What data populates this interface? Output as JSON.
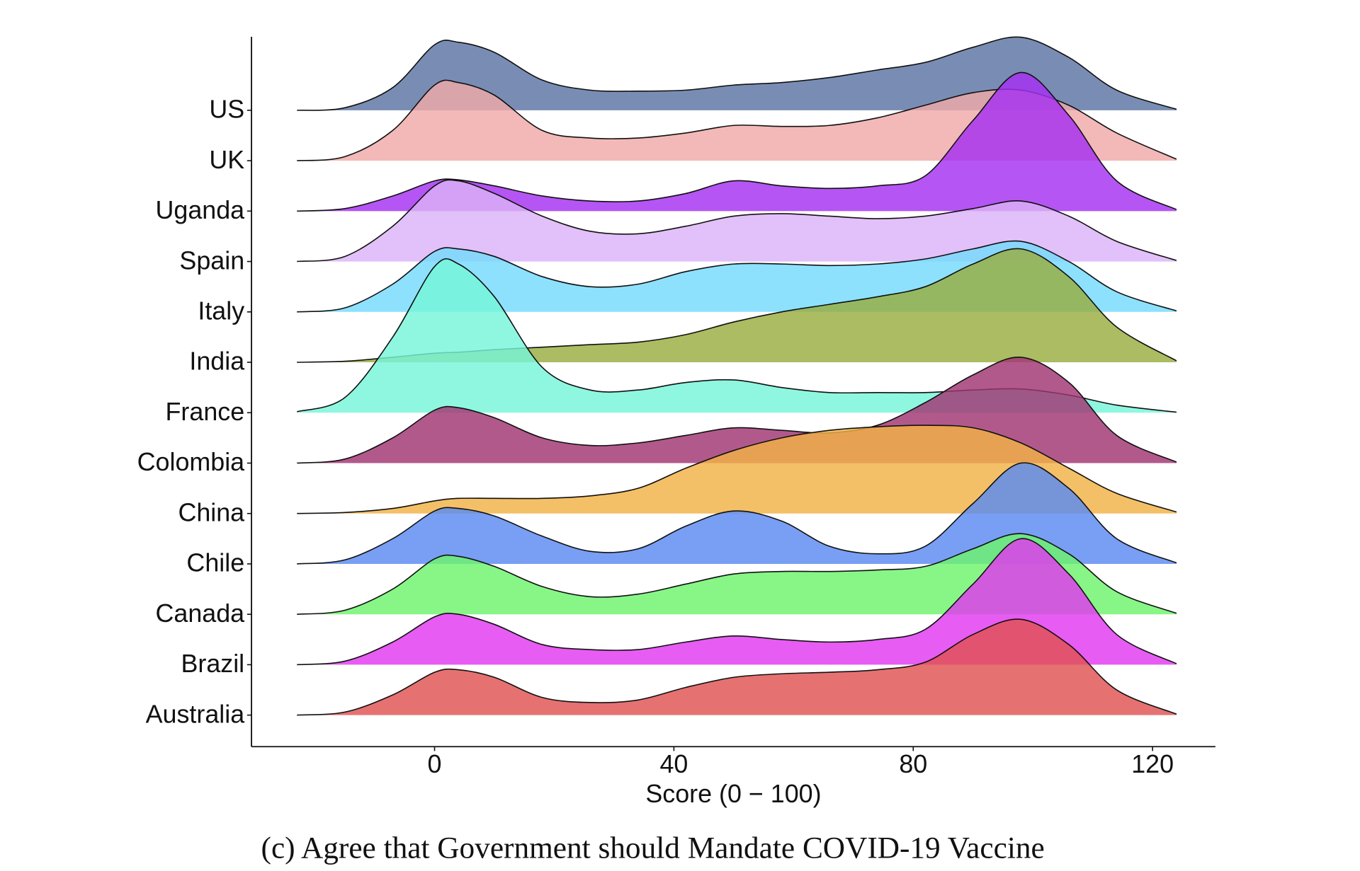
{
  "chart_data": {
    "type": "ridgeline",
    "xlabel": "Score (0 − 100)",
    "caption": "(c) Agree that Government should Mandate COVID-19 Vaccine",
    "xlim": [
      -30.6,
      130.5
    ],
    "xticks": [
      0,
      40,
      80,
      120
    ],
    "x": [
      -23,
      -15,
      -7,
      0,
      4,
      10,
      18,
      26,
      34,
      42,
      50,
      58,
      66,
      74,
      82,
      90,
      98,
      106,
      114,
      124
    ],
    "series": [
      {
        "name": "US",
        "color": "#5b74a4",
        "values": [
          0,
          0.05,
          0.45,
          1.3,
          1.35,
          1.15,
          0.6,
          0.4,
          0.38,
          0.4,
          0.5,
          0.55,
          0.65,
          0.8,
          0.95,
          1.25,
          1.45,
          1.05,
          0.4,
          0.02
        ]
      },
      {
        "name": "UK",
        "color": "#efaaa8",
        "values": [
          0,
          0.08,
          0.6,
          1.5,
          1.55,
          1.3,
          0.6,
          0.45,
          0.45,
          0.55,
          0.7,
          0.68,
          0.7,
          0.85,
          1.1,
          1.35,
          1.4,
          1.1,
          0.55,
          0.03
        ]
      },
      {
        "name": "Uganda",
        "color": "#a530f2",
        "values": [
          0,
          0.05,
          0.3,
          0.6,
          0.62,
          0.5,
          0.3,
          0.2,
          0.2,
          0.35,
          0.6,
          0.5,
          0.45,
          0.5,
          0.7,
          1.8,
          2.75,
          1.9,
          0.6,
          0.03
        ]
      },
      {
        "name": "Spain",
        "color": "#dcb2f8",
        "values": [
          0,
          0.1,
          0.7,
          1.5,
          1.6,
          1.35,
          0.9,
          0.6,
          0.55,
          0.7,
          0.9,
          0.95,
          0.9,
          0.85,
          0.9,
          1.05,
          1.2,
          0.9,
          0.4,
          0.02
        ]
      },
      {
        "name": "Italy",
        "color": "#74dbfb",
        "values": [
          0,
          0.08,
          0.55,
          1.2,
          1.25,
          1.1,
          0.7,
          0.5,
          0.55,
          0.8,
          0.95,
          0.95,
          0.92,
          0.95,
          1.05,
          1.25,
          1.4,
          1.0,
          0.4,
          0.02
        ]
      },
      {
        "name": "India",
        "color": "#98ad40",
        "values": [
          0,
          0.02,
          0.1,
          0.18,
          0.2,
          0.25,
          0.3,
          0.35,
          0.4,
          0.55,
          0.8,
          1.0,
          1.15,
          1.3,
          1.5,
          1.95,
          2.25,
          1.7,
          0.7,
          0.03
        ]
      },
      {
        "name": "France",
        "color": "#76f5d9",
        "values": [
          0.02,
          0.3,
          1.5,
          2.9,
          2.95,
          2.3,
          0.9,
          0.45,
          0.45,
          0.6,
          0.65,
          0.5,
          0.4,
          0.4,
          0.4,
          0.45,
          0.47,
          0.35,
          0.15,
          0.01
        ]
      },
      {
        "name": "Colombia",
        "color": "#a13473",
        "values": [
          0,
          0.08,
          0.5,
          1.05,
          1.1,
          0.9,
          0.5,
          0.35,
          0.4,
          0.55,
          0.7,
          0.65,
          0.6,
          0.75,
          1.2,
          1.75,
          2.1,
          1.6,
          0.55,
          0.02
        ]
      },
      {
        "name": "China",
        "color": "#f2b245",
        "values": [
          0,
          0.02,
          0.1,
          0.25,
          0.3,
          0.3,
          0.3,
          0.35,
          0.5,
          0.9,
          1.25,
          1.5,
          1.65,
          1.72,
          1.75,
          1.7,
          1.4,
          0.9,
          0.4,
          0.03
        ]
      },
      {
        "name": "Chile",
        "color": "#5a8af2",
        "values": [
          0,
          0.08,
          0.5,
          1.05,
          1.1,
          0.95,
          0.55,
          0.25,
          0.3,
          0.75,
          1.05,
          0.85,
          0.35,
          0.2,
          0.35,
          1.2,
          2.0,
          1.5,
          0.5,
          0.02
        ]
      },
      {
        "name": "Canada",
        "color": "#6cf46c",
        "values": [
          0,
          0.08,
          0.5,
          1.1,
          1.15,
          0.95,
          0.55,
          0.35,
          0.4,
          0.6,
          0.8,
          0.85,
          0.85,
          0.88,
          0.95,
          1.3,
          1.6,
          1.2,
          0.45,
          0.02
        ]
      },
      {
        "name": "Brazil",
        "color": "#e238f0",
        "values": [
          0,
          0.07,
          0.45,
          0.95,
          1.0,
          0.8,
          0.4,
          0.3,
          0.3,
          0.45,
          0.57,
          0.5,
          0.45,
          0.5,
          0.7,
          1.6,
          2.5,
          1.8,
          0.6,
          0.02
        ]
      },
      {
        "name": "Australia",
        "color": "#e05252",
        "values": [
          0,
          0.06,
          0.4,
          0.85,
          0.9,
          0.75,
          0.35,
          0.25,
          0.3,
          0.55,
          0.75,
          0.82,
          0.85,
          0.9,
          1.05,
          1.6,
          1.9,
          1.4,
          0.5,
          0.02
        ]
      }
    ]
  }
}
